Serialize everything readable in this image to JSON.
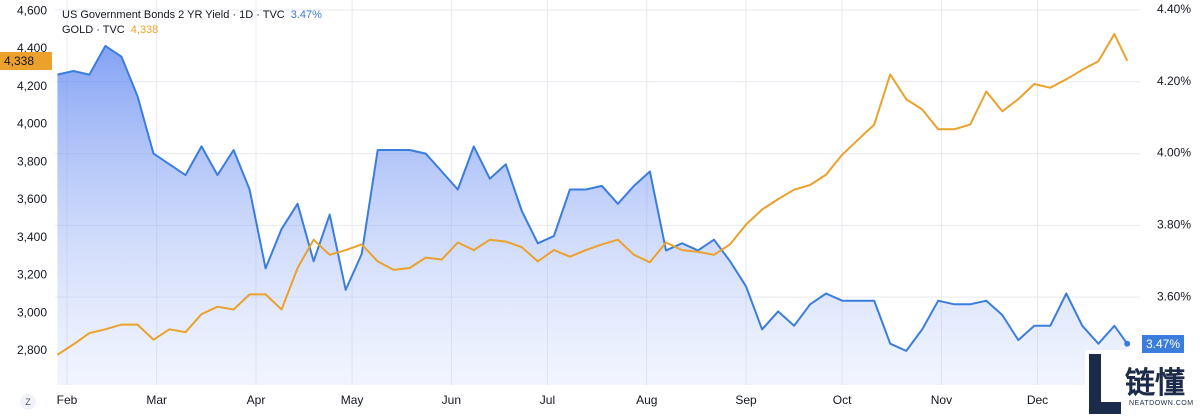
{
  "chart_data": {
    "type": "line",
    "x": [
      29,
      34,
      39,
      44,
      49,
      54,
      59,
      64,
      69,
      74,
      79,
      84,
      89,
      94,
      99,
      104,
      109,
      114,
      119,
      124,
      129,
      134,
      139,
      144,
      149,
      154,
      159,
      164,
      169,
      174,
      179,
      184,
      189,
      194,
      199,
      204,
      209,
      214,
      219,
      224,
      229,
      234,
      239,
      244,
      249,
      254,
      259,
      264,
      269,
      274,
      279,
      284,
      289,
      294,
      299,
      304,
      309,
      314,
      319,
      324,
      329,
      334,
      339,
      344,
      349,
      354,
      359,
      363
    ],
    "xlim": [
      28.25,
      367
    ],
    "xticks": [
      {
        "value": 32,
        "label": "Feb"
      },
      {
        "value": 60,
        "label": "Mar"
      },
      {
        "value": 91,
        "label": "Apr"
      },
      {
        "value": 121,
        "label": "May"
      },
      {
        "value": 152,
        "label": "Jun"
      },
      {
        "value": 182,
        "label": "Jul"
      },
      {
        "value": 213,
        "label": "Aug"
      },
      {
        "value": 244,
        "label": "Sep"
      },
      {
        "value": 274,
        "label": "Oct"
      },
      {
        "value": 305,
        "label": "Nov"
      },
      {
        "value": 335,
        "label": "Dec"
      }
    ],
    "ylim": [
      2620,
      4660
    ],
    "yticks": [
      {
        "value": 2800,
        "label": "2,800"
      },
      {
        "value": 3000,
        "label": "3,000"
      },
      {
        "value": 3200,
        "label": "3,200"
      },
      {
        "value": 3400,
        "label": "3,400"
      },
      {
        "value": 3600,
        "label": "3,600"
      },
      {
        "value": 3800,
        "label": "3,800"
      },
      {
        "value": 4000,
        "label": "4,000"
      },
      {
        "value": 4200,
        "label": "4,200"
      },
      {
        "value": 4400,
        "label": "4,400"
      },
      {
        "value": 4600,
        "label": "4,600"
      }
    ],
    "y2lim": [
      3.355,
      4.428
    ],
    "y2ticks": [
      {
        "value": 3.6,
        "label": "3.60%"
      },
      {
        "value": 3.8,
        "label": "3.80%"
      },
      {
        "value": 4.0,
        "label": "4.00%"
      },
      {
        "value": 4.2,
        "label": "4.20%"
      },
      {
        "value": 4.4,
        "label": "4.40%"
      }
    ],
    "grid": true,
    "series": [
      {
        "name": "US Government Bonds 2 YR Yield · 1D · TVC",
        "color": "#3b7ddd",
        "axis": "y2",
        "area": true,
        "last_value_label": "3.47%",
        "values": [
          4.22,
          4.23,
          4.22,
          4.3,
          4.27,
          4.16,
          4.0,
          3.97,
          3.94,
          4.02,
          3.94,
          4.01,
          3.9,
          3.68,
          3.79,
          3.86,
          3.7,
          3.83,
          3.62,
          3.72,
          4.01,
          4.01,
          4.01,
          4.0,
          3.95,
          3.9,
          4.02,
          3.93,
          3.97,
          3.84,
          3.75,
          3.77,
          3.9,
          3.9,
          3.91,
          3.86,
          3.91,
          3.95,
          3.73,
          3.75,
          3.73,
          3.76,
          3.7,
          3.63,
          3.51,
          3.56,
          3.52,
          3.58,
          3.61,
          3.59,
          3.59,
          3.59,
          3.47,
          3.45,
          3.51,
          3.59,
          3.58,
          3.58,
          3.59,
          3.55,
          3.48,
          3.52,
          3.52,
          3.61,
          3.52,
          3.47,
          3.52,
          3.47
        ]
      },
      {
        "name": "GOLD · TVC",
        "color": "#eba12c",
        "axis": "y",
        "last_value_label": "4,338",
        "values": [
          2780,
          2835,
          2895,
          2915,
          2940,
          2940,
          2860,
          2915,
          2900,
          2995,
          3035,
          3020,
          3100,
          3100,
          3020,
          3240,
          3390,
          3310,
          3335,
          3365,
          3275,
          3230,
          3240,
          3295,
          3285,
          3375,
          3335,
          3390,
          3380,
          3350,
          3275,
          3335,
          3300,
          3335,
          3365,
          3390,
          3310,
          3270,
          3375,
          3335,
          3325,
          3310,
          3365,
          3470,
          3550,
          3605,
          3655,
          3680,
          3735,
          3840,
          3920,
          4000,
          4265,
          4135,
          4080,
          3975,
          3975,
          4000,
          4175,
          4070,
          4135,
          4215,
          4195,
          4240,
          4290,
          4335,
          4480,
          4338
        ]
      }
    ]
  },
  "watermark": {
    "text": "链懂",
    "url": "NEATDOWN.COM"
  },
  "timezone_button": "Z"
}
